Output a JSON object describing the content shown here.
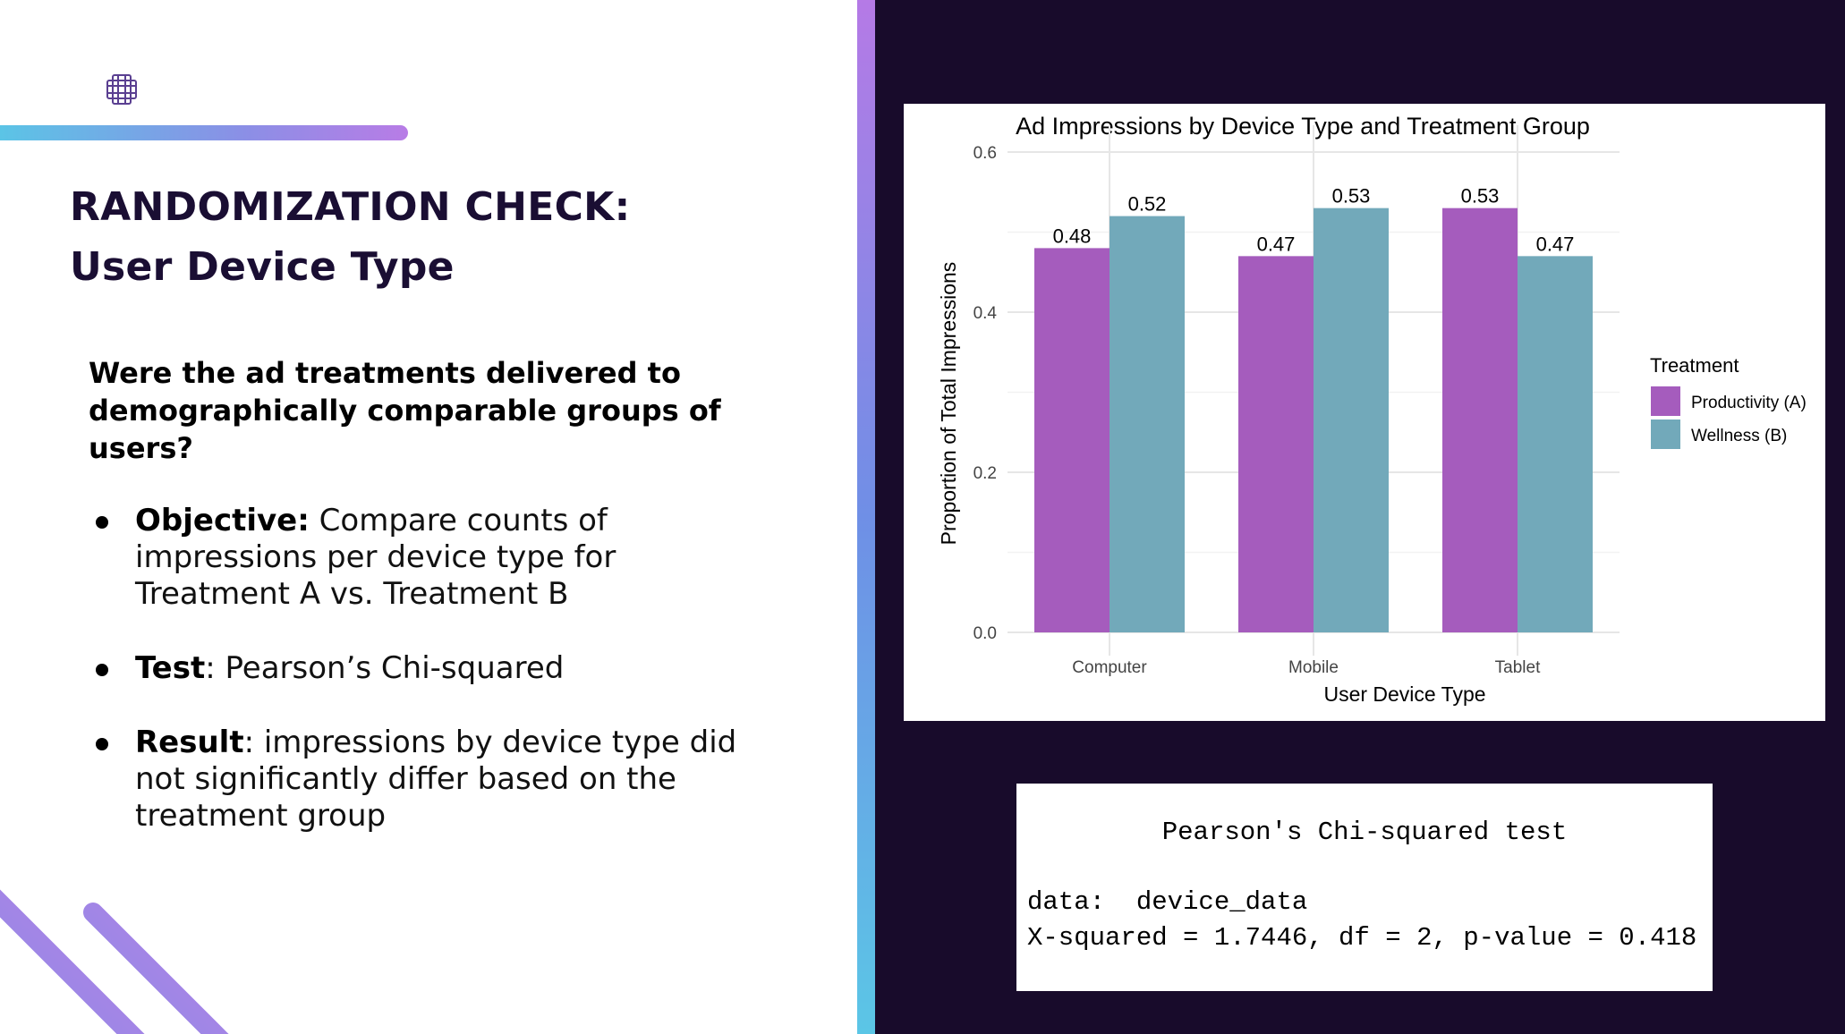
{
  "slide": {
    "title_line1": "RANDOMIZATION CHECK:",
    "title_line2": "User Device Type",
    "question": "Were the ad treatments delivered to demographically comparable groups of users?",
    "bullets": [
      {
        "label": "Objective:",
        "text": " Compare counts of impressions per device type for Treatment A vs. Treatment B"
      },
      {
        "label": "Test",
        "text": ": Pearson’s Chi-squared"
      },
      {
        "label": "Result",
        "text": ": impressions by device type did not significantly differ based on the treatment group"
      }
    ],
    "icons": {
      "logo": "grid-logo-icon",
      "bullet": "bullet-dot-icon"
    },
    "colors": {
      "dark_bg": "#180b2b",
      "title": "#1a0e33",
      "accent_purple": "#b87ce6",
      "accent_cyan": "#5bc4e6"
    }
  },
  "chart_data": {
    "type": "bar",
    "title": "Ad Impressions by Device Type and Treatment Group",
    "xlabel": "User Device Type",
    "ylabel": "Proportion of Total Impressions",
    "categories": [
      "Computer",
      "Mobile",
      "Tablet"
    ],
    "series": [
      {
        "name": "Productivity (A)",
        "values": [
          0.48,
          0.47,
          0.53
        ],
        "labels": [
          "0.48",
          "0.47",
          "0.53"
        ],
        "color": "#a55cbd"
      },
      {
        "name": "Wellness (B)",
        "values": [
          0.52,
          0.53,
          0.47
        ],
        "labels": [
          "0.52",
          "0.53",
          "0.47"
        ],
        "color": "#72a9ba"
      }
    ],
    "ylim": [
      0,
      0.6
    ],
    "yticks": [
      0.0,
      0.2,
      0.4,
      0.6
    ],
    "ytick_labels": [
      "0.0",
      "0.2",
      "0.4",
      "0.6"
    ],
    "legend": {
      "title": "Treatment",
      "position": "right"
    },
    "grid": true
  },
  "chi_test": {
    "title": "Pearson's Chi-squared test",
    "data_line": "data:  device_data",
    "result_line": "X-squared = 1.7446, df = 2, p-value = 0.418"
  }
}
